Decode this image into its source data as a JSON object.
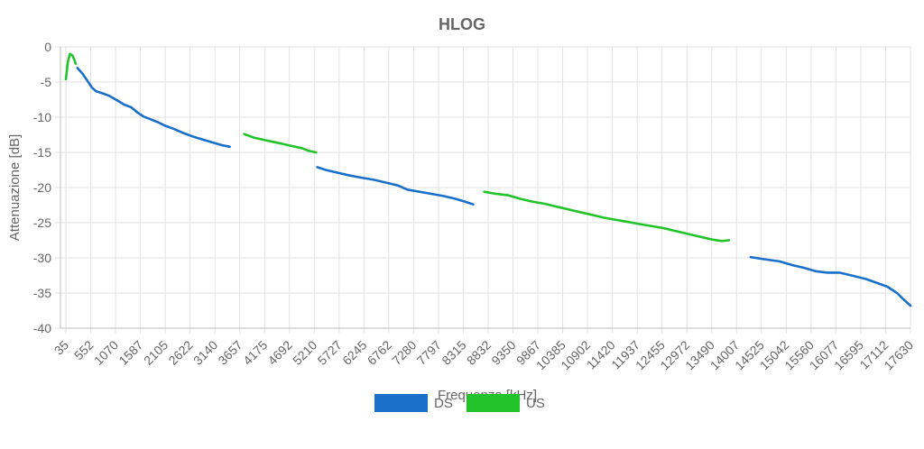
{
  "chart_data": {
    "type": "line",
    "title": "HLOG",
    "xlabel": "Frequenza [kHz]",
    "ylabel": "Attenuazione [dB]",
    "xlim": [
      35,
      17630
    ],
    "ylim": [
      -40,
      0
    ],
    "x_ticks": [
      35,
      552,
      1070,
      1587,
      2105,
      2622,
      3140,
      3657,
      4175,
      4692,
      5210,
      5727,
      6245,
      6762,
      7280,
      7797,
      8315,
      8832,
      9350,
      9867,
      10385,
      10902,
      11420,
      11937,
      12455,
      12972,
      13490,
      14007,
      14525,
      15042,
      15560,
      16077,
      16595,
      17112,
      17630
    ],
    "y_ticks": [
      0,
      -5,
      -10,
      -15,
      -20,
      -25,
      -30,
      -35,
      -40
    ],
    "grid": true,
    "legend_position": "bottom",
    "series": [
      {
        "name": "DS",
        "color": "#1a6fc9",
        "segments": [
          [
            [
              276,
              -3.0
            ],
            [
              380,
              -3.8
            ],
            [
              480,
              -4.8
            ],
            [
              580,
              -5.8
            ],
            [
              660,
              -6.3
            ],
            [
              800,
              -6.6
            ],
            [
              950,
              -7.0
            ],
            [
              1100,
              -7.6
            ],
            [
              1250,
              -8.2
            ],
            [
              1400,
              -8.6
            ],
            [
              1520,
              -9.3
            ],
            [
              1650,
              -9.9
            ],
            [
              1800,
              -10.3
            ],
            [
              1950,
              -10.7
            ],
            [
              2100,
              -11.2
            ],
            [
              2300,
              -11.7
            ],
            [
              2500,
              -12.3
            ],
            [
              2700,
              -12.8
            ],
            [
              2900,
              -13.2
            ],
            [
              3100,
              -13.6
            ],
            [
              3300,
              -14.0
            ],
            [
              3450,
              -14.2
            ]
          ],
          [
            [
              5270,
              -17.1
            ],
            [
              5450,
              -17.5
            ],
            [
              5700,
              -17.9
            ],
            [
              5950,
              -18.3
            ],
            [
              6200,
              -18.6
            ],
            [
              6450,
              -18.9
            ],
            [
              6700,
              -19.3
            ],
            [
              6950,
              -19.7
            ],
            [
              7150,
              -20.3
            ],
            [
              7400,
              -20.6
            ],
            [
              7650,
              -20.9
            ],
            [
              7900,
              -21.2
            ],
            [
              8150,
              -21.6
            ],
            [
              8350,
              -22.0
            ],
            [
              8520,
              -22.4
            ]
          ],
          [
            [
              14300,
              -29.9
            ],
            [
              14600,
              -30.2
            ],
            [
              14900,
              -30.5
            ],
            [
              15150,
              -31.0
            ],
            [
              15400,
              -31.4
            ],
            [
              15650,
              -31.9
            ],
            [
              15900,
              -32.1
            ],
            [
              16150,
              -32.1
            ],
            [
              16400,
              -32.5
            ],
            [
              16700,
              -33.0
            ],
            [
              16950,
              -33.6
            ],
            [
              17150,
              -34.1
            ],
            [
              17350,
              -35.0
            ],
            [
              17500,
              -36.0
            ],
            [
              17630,
              -36.8
            ]
          ]
        ]
      },
      {
        "name": "US",
        "color": "#22c32a",
        "segments": [
          [
            [
              35,
              -4.6
            ],
            [
              80,
              -2.0
            ],
            [
              120,
              -1.0
            ],
            [
              170,
              -1.2
            ],
            [
              210,
              -1.8
            ],
            [
              240,
              -2.4
            ]
          ],
          [
            [
              3750,
              -12.4
            ],
            [
              3950,
              -12.9
            ],
            [
              4150,
              -13.2
            ],
            [
              4350,
              -13.5
            ],
            [
              4550,
              -13.8
            ],
            [
              4750,
              -14.1
            ],
            [
              4950,
              -14.4
            ],
            [
              5100,
              -14.8
            ],
            [
              5250,
              -15.0
            ]
          ],
          [
            [
              8750,
              -20.6
            ],
            [
              9000,
              -20.9
            ],
            [
              9250,
              -21.1
            ],
            [
              9500,
              -21.6
            ],
            [
              9750,
              -22.0
            ],
            [
              10000,
              -22.3
            ],
            [
              10250,
              -22.7
            ],
            [
              10500,
              -23.1
            ],
            [
              10750,
              -23.5
            ],
            [
              11000,
              -23.9
            ],
            [
              11250,
              -24.3
            ],
            [
              11500,
              -24.6
            ],
            [
              11750,
              -24.9
            ],
            [
              12000,
              -25.2
            ],
            [
              12250,
              -25.5
            ],
            [
              12500,
              -25.8
            ],
            [
              12750,
              -26.2
            ],
            [
              13000,
              -26.6
            ],
            [
              13250,
              -27.0
            ],
            [
              13500,
              -27.4
            ],
            [
              13700,
              -27.6
            ],
            [
              13850,
              -27.5
            ]
          ]
        ]
      }
    ]
  }
}
